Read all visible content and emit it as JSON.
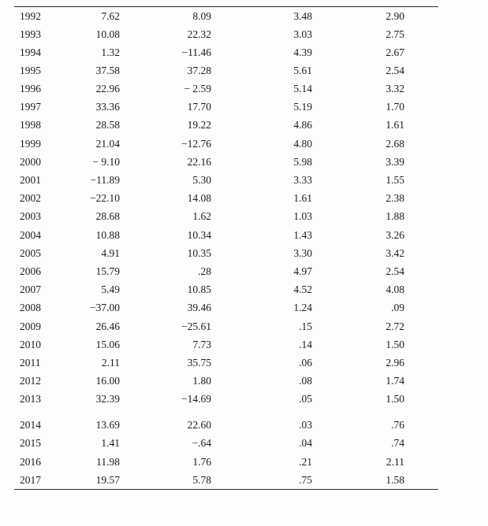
{
  "page": {
    "background_color": "#fdfdfb",
    "text_color": "#1c1c1c",
    "rule_color": "#2a2a2a"
  },
  "table": {
    "description_visible_headers": [],
    "rows": [
      {
        "year": "1992",
        "values": [
          "7.62",
          "8.09",
          "3.48",
          "2.90"
        ]
      },
      {
        "year": "1993",
        "values": [
          "10.08",
          "22.32",
          "3.03",
          "2.75"
        ]
      },
      {
        "year": "1994",
        "values": [
          "1.32",
          "−11.46",
          "4.39",
          "2.67"
        ]
      },
      {
        "year": "1995",
        "values": [
          "37.58",
          "37.28",
          "5.61",
          "2.54"
        ]
      },
      {
        "year": "1996",
        "values": [
          "22.96",
          "− 2.59",
          "5.14",
          "3.32"
        ]
      },
      {
        "year": "1997",
        "values": [
          "33.36",
          "17.70",
          "5.19",
          "1.70"
        ]
      },
      {
        "year": "1998",
        "values": [
          "28.58",
          "19.22",
          "4.86",
          "1.61"
        ]
      },
      {
        "year": "1999",
        "values": [
          "21.04",
          "−12.76",
          "4.80",
          "2.68"
        ]
      },
      {
        "year": "2000",
        "values": [
          "− 9.10",
          "22.16",
          "5.98",
          "3.39"
        ]
      },
      {
        "year": "2001",
        "values": [
          "−11.89",
          "5.30",
          "3.33",
          "1.55"
        ]
      },
      {
        "year": "2002",
        "values": [
          "−22.10",
          "14.08",
          "1.61",
          "2.38"
        ]
      },
      {
        "year": "2003",
        "values": [
          "28.68",
          "1.62",
          "1.03",
          "1.88"
        ]
      },
      {
        "year": "2004",
        "values": [
          "10.88",
          "10.34",
          "1.43",
          "3.26"
        ]
      },
      {
        "year": "2005",
        "values": [
          "4.91",
          "10.35",
          "3.30",
          "3.42"
        ]
      },
      {
        "year": "2006",
        "values": [
          "15.79",
          ".28",
          "4.97",
          "2.54"
        ]
      },
      {
        "year": "2007",
        "values": [
          "5.49",
          "10.85",
          "4.52",
          "4.08"
        ]
      },
      {
        "year": "2008",
        "values": [
          "−37.00",
          "39.46",
          "1.24",
          ".09"
        ]
      },
      {
        "year": "2009",
        "values": [
          "26.46",
          "−25.61",
          ".15",
          "2.72"
        ]
      },
      {
        "year": "2010",
        "values": [
          "15.06",
          "7.73",
          ".14",
          "1.50"
        ]
      },
      {
        "year": "2011",
        "values": [
          "2.11",
          "35.75",
          ".06",
          "2.96"
        ]
      },
      {
        "year": "2012",
        "values": [
          "16.00",
          "1.80",
          ".08",
          "1.74"
        ]
      },
      {
        "year": "2013",
        "values": [
          "32.39",
          "−14.69",
          ".05",
          "1.50"
        ]
      },
      {
        "year": "2014",
        "values": [
          "13.69",
          "22.60",
          ".03",
          ".76"
        ],
        "gap_before": true
      },
      {
        "year": "2015",
        "values": [
          "1.41",
          "−.64",
          ".04",
          ".74"
        ]
      },
      {
        "year": "2016",
        "values": [
          "11.98",
          "1.76",
          ".21",
          "2.11"
        ]
      },
      {
        "year": "2017",
        "values": [
          "19.57",
          "5.78",
          ".75",
          "1.58"
        ]
      }
    ]
  }
}
